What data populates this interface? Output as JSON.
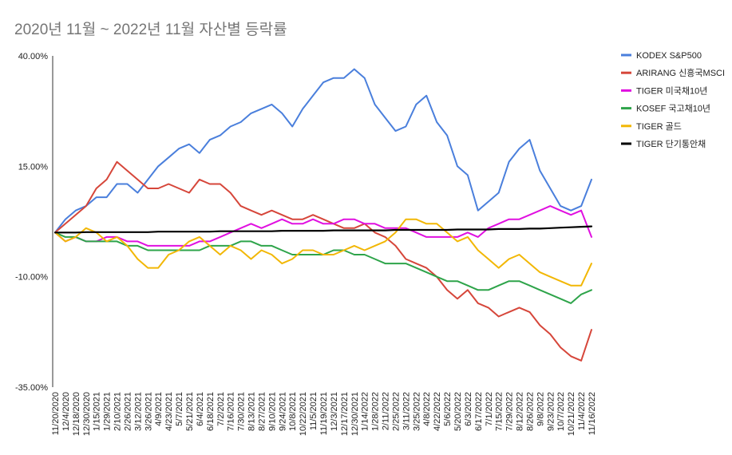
{
  "chart_data": {
    "type": "line",
    "title": "2020년 11월 ~ 2022년 11월 자산별 등락률",
    "xlabel": "",
    "ylabel": "",
    "ylim": [
      -0.35,
      0.4
    ],
    "yticks": [
      "40.00%",
      "15.00%",
      "-10.00%",
      "-35.00%"
    ],
    "ytick_values": [
      0.4,
      0.15,
      -0.1,
      -0.35
    ],
    "grid": false,
    "legend_position": "right",
    "categories": [
      "11/20/2020",
      "12/4/2020",
      "12/18/2020",
      "12/30/2020",
      "1/15/2021",
      "1/29/2021",
      "2/10/2021",
      "2/26/2021",
      "3/12/2021",
      "3/26/2021",
      "4/9/2021",
      "4/23/2021",
      "5/7/2021",
      "5/21/2021",
      "6/4/2021",
      "6/18/2021",
      "7/2/2021",
      "7/16/2021",
      "7/30/2021",
      "8/13/2021",
      "8/27/2021",
      "9/10/2021",
      "9/24/2021",
      "10/8/2021",
      "10/22/2021",
      "11/5/2021",
      "11/19/2021",
      "12/3/2021",
      "12/17/2021",
      "12/30/2021",
      "1/14/2022",
      "1/28/2022",
      "2/11/2022",
      "2/25/2022",
      "3/11/2022",
      "3/25/2022",
      "4/8/2022",
      "4/22/2022",
      "5/6/2022",
      "5/20/2022",
      "6/3/2022",
      "6/17/2022",
      "7/1/2022",
      "7/15/2022",
      "7/29/2022",
      "8/12/2022",
      "8/26/2022",
      "9/8/2022",
      "9/23/2022",
      "10/7/2022",
      "10/21/2022",
      "11/4/2022",
      "11/16/2022"
    ],
    "series": [
      {
        "name": "KODEX S&P500",
        "color": "#4a7fdc",
        "values": [
          0,
          0.03,
          0.05,
          0.06,
          0.08,
          0.08,
          0.11,
          0.11,
          0.09,
          0.12,
          0.15,
          0.17,
          0.19,
          0.2,
          0.18,
          0.21,
          0.22,
          0.24,
          0.25,
          0.27,
          0.28,
          0.29,
          0.27,
          0.24,
          0.28,
          0.31,
          0.34,
          0.35,
          0.35,
          0.37,
          0.35,
          0.29,
          0.26,
          0.23,
          0.24,
          0.29,
          0.31,
          0.25,
          0.22,
          0.15,
          0.13,
          0.05,
          0.07,
          0.09,
          0.16,
          0.19,
          0.21,
          0.14,
          0.1,
          0.06,
          0.05,
          0.06,
          0.12
        ]
      },
      {
        "name": "ARIRANG 신흥국MSCI",
        "color": "#d6463a",
        "values": [
          0,
          0.02,
          0.04,
          0.06,
          0.1,
          0.12,
          0.16,
          0.14,
          0.12,
          0.1,
          0.1,
          0.11,
          0.1,
          0.09,
          0.12,
          0.11,
          0.11,
          0.09,
          0.06,
          0.05,
          0.04,
          0.05,
          0.04,
          0.03,
          0.03,
          0.04,
          0.03,
          0.02,
          0.01,
          0.01,
          0.02,
          0.0,
          -0.01,
          -0.03,
          -0.06,
          -0.07,
          -0.08,
          -0.1,
          -0.13,
          -0.15,
          -0.13,
          -0.16,
          -0.17,
          -0.19,
          -0.18,
          -0.17,
          -0.18,
          -0.21,
          -0.23,
          -0.26,
          -0.28,
          -0.29,
          -0.22
        ]
      },
      {
        "name": "TIGER 미국채10년",
        "color": "#e010e0",
        "values": [
          0,
          -0.02,
          -0.01,
          -0.02,
          -0.02,
          -0.01,
          -0.01,
          -0.02,
          -0.02,
          -0.03,
          -0.03,
          -0.03,
          -0.03,
          -0.03,
          -0.02,
          -0.02,
          -0.01,
          0.0,
          0.01,
          0.02,
          0.01,
          0.02,
          0.03,
          0.02,
          0.02,
          0.03,
          0.02,
          0.02,
          0.03,
          0.03,
          0.02,
          0.02,
          0.01,
          0.01,
          0.01,
          0.0,
          -0.01,
          -0.01,
          -0.01,
          -0.01,
          0.0,
          -0.01,
          0.01,
          0.02,
          0.03,
          0.03,
          0.04,
          0.05,
          0.06,
          0.05,
          0.04,
          0.05,
          -0.01
        ]
      },
      {
        "name": "KOSEF 국고채10년",
        "color": "#2ea44a",
        "values": [
          0,
          -0.01,
          -0.01,
          -0.02,
          -0.02,
          -0.02,
          -0.02,
          -0.03,
          -0.03,
          -0.04,
          -0.04,
          -0.04,
          -0.04,
          -0.04,
          -0.04,
          -0.03,
          -0.03,
          -0.03,
          -0.02,
          -0.02,
          -0.03,
          -0.03,
          -0.04,
          -0.05,
          -0.05,
          -0.05,
          -0.05,
          -0.04,
          -0.04,
          -0.05,
          -0.05,
          -0.06,
          -0.07,
          -0.07,
          -0.07,
          -0.08,
          -0.09,
          -0.1,
          -0.11,
          -0.11,
          -0.12,
          -0.13,
          -0.13,
          -0.12,
          -0.11,
          -0.11,
          -0.12,
          -0.13,
          -0.14,
          -0.15,
          -0.16,
          -0.14,
          -0.13
        ]
      },
      {
        "name": "TIGER 골드",
        "color": "#f2b705",
        "values": [
          0,
          -0.02,
          -0.01,
          0.01,
          0.0,
          -0.02,
          -0.01,
          -0.03,
          -0.06,
          -0.08,
          -0.08,
          -0.05,
          -0.04,
          -0.02,
          -0.01,
          -0.03,
          -0.05,
          -0.03,
          -0.04,
          -0.06,
          -0.04,
          -0.05,
          -0.07,
          -0.06,
          -0.04,
          -0.04,
          -0.05,
          -0.05,
          -0.04,
          -0.03,
          -0.04,
          -0.03,
          -0.02,
          0.0,
          0.03,
          0.03,
          0.02,
          0.02,
          0.0,
          -0.02,
          -0.01,
          -0.04,
          -0.06,
          -0.08,
          -0.06,
          -0.05,
          -0.07,
          -0.09,
          -0.1,
          -0.11,
          -0.12,
          -0.12,
          -0.07
        ]
      },
      {
        "name": "TIGER 단기통안채",
        "color": "#000000",
        "values": [
          0,
          0.0,
          0.0,
          0.001,
          0.001,
          0.001,
          0.001,
          0.001,
          0.001,
          0.001,
          0.002,
          0.002,
          0.002,
          0.002,
          0.002,
          0.002,
          0.003,
          0.003,
          0.003,
          0.003,
          0.003,
          0.003,
          0.004,
          0.004,
          0.004,
          0.004,
          0.004,
          0.005,
          0.005,
          0.005,
          0.005,
          0.005,
          0.005,
          0.006,
          0.006,
          0.006,
          0.006,
          0.006,
          0.006,
          0.007,
          0.007,
          0.007,
          0.007,
          0.008,
          0.008,
          0.008,
          0.009,
          0.009,
          0.01,
          0.011,
          0.012,
          0.013,
          0.014
        ]
      }
    ]
  }
}
